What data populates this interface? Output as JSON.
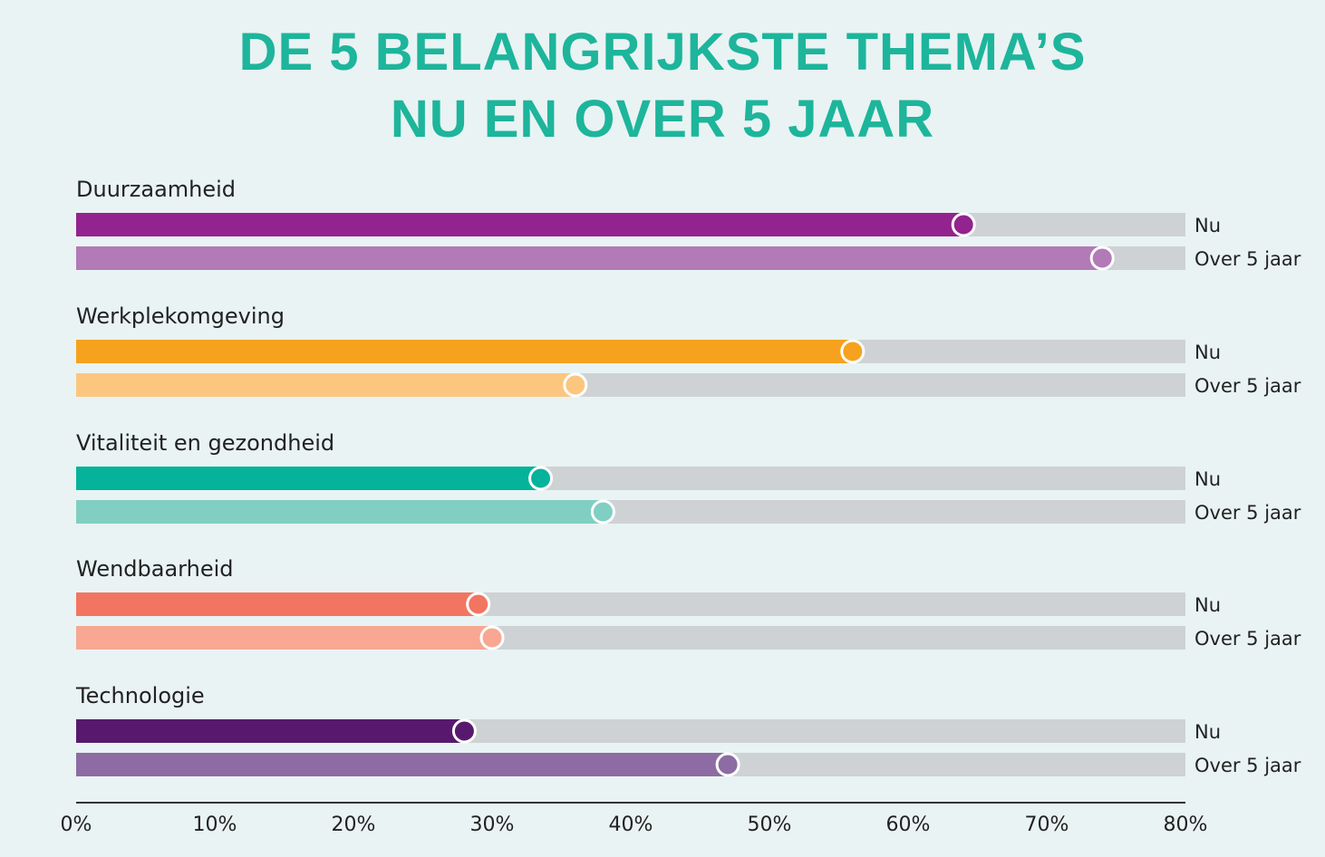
{
  "chart_data": {
    "type": "bar",
    "orientation": "horizontal",
    "title_lines": [
      "DE 5 BELANGRIJKSTE THEMA’S",
      "NU EN OVER 5 JAAR"
    ],
    "categories": [
      "Duurzaamheid",
      "Werkplekomgeving",
      "Vitaliteit en gezondheid",
      "Wendbaarheid",
      "Technologie"
    ],
    "series_labels": [
      "Nu",
      "Over 5 jaar"
    ],
    "values": [
      {
        "nu": 64,
        "over5": 74
      },
      {
        "nu": 56,
        "over5": 36
      },
      {
        "nu": 33.5,
        "over5": 38
      },
      {
        "nu": 29,
        "over5": 30
      },
      {
        "nu": 28,
        "over5": 47
      }
    ],
    "colors": [
      {
        "nu": "#93238f",
        "over5": "#b27ab7"
      },
      {
        "nu": "#f6a21e",
        "over5": "#fcc67f"
      },
      {
        "nu": "#05b39a",
        "over5": "#80cfc2"
      },
      {
        "nu": "#f27561",
        "over5": "#f8a792"
      },
      {
        "nu": "#57196e",
        "over5": "#8c6ca2"
      }
    ],
    "track_color": "#cfd2d5",
    "xlim": [
      0,
      80
    ],
    "xticks": [
      "0%",
      "10%",
      "20%",
      "30%",
      "40%",
      "50%",
      "60%",
      "70%",
      "80%"
    ],
    "grid": false
  }
}
